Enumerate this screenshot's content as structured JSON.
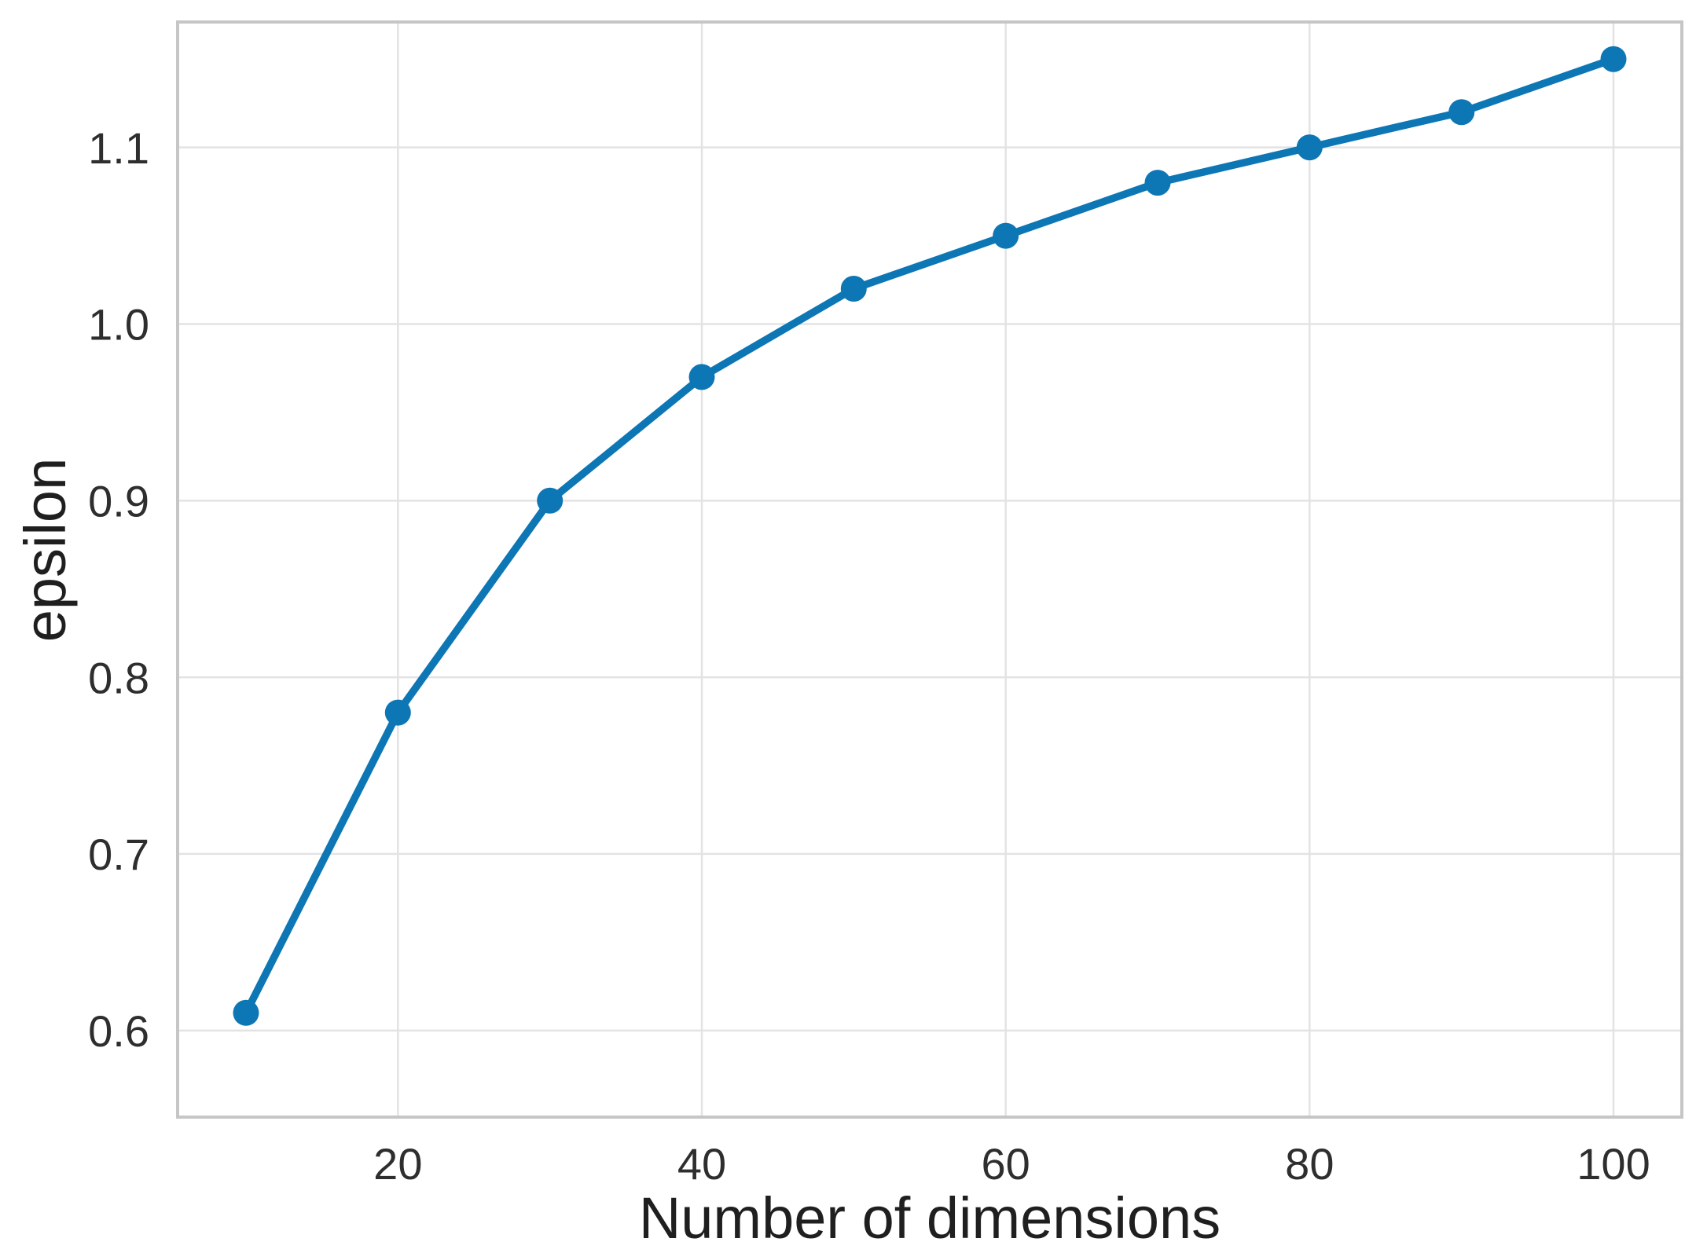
{
  "chart_data": {
    "type": "line",
    "title": "",
    "xlabel": "Number of dimensions",
    "ylabel": "epsilon",
    "x": [
      10,
      20,
      30,
      40,
      50,
      60,
      70,
      80,
      90,
      100
    ],
    "series": [
      {
        "name": "epsilon",
        "values": [
          0.61,
          0.78,
          0.9,
          0.97,
          1.02,
          1.05,
          1.08,
          1.1,
          1.12,
          1.15
        ]
      }
    ],
    "xticks": [
      20,
      40,
      60,
      80,
      100
    ],
    "yticks": [
      0.6,
      0.7,
      0.8,
      0.9,
      1.0,
      1.1
    ],
    "xlim": [
      5.5,
      104.5
    ],
    "ylim": [
      0.551,
      1.171
    ],
    "grid": true,
    "legend": false,
    "colors": {
      "line": "#0d76b4",
      "marker": "#0d76b4",
      "grid": "#e3e3e3",
      "spine": "#c6c6c6",
      "tick_label": "#2e2e2e",
      "axis_label": "#1f1f1f",
      "background": "#ffffff"
    }
  }
}
